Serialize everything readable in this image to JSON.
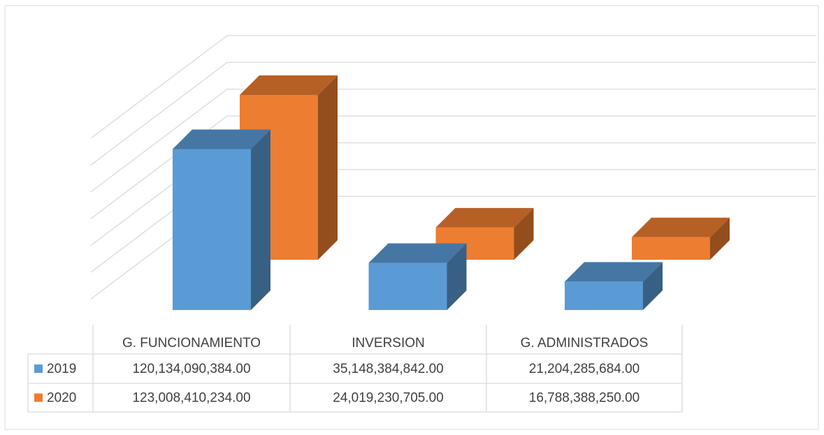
{
  "chart_data": {
    "type": "bar3d",
    "categories": [
      "G. FUNCIONAMIENTO",
      "INVERSION",
      "G. ADMINISTRADOS"
    ],
    "series": [
      {
        "name": "2019",
        "color": "#5b9bd5",
        "values": [
          120134090384.0,
          35148384842.0,
          21204285684.0
        ],
        "value_labels": [
          "120,134,090,384.00",
          "35,148,384,842.00",
          "21,204,285,684.00"
        ]
      },
      {
        "name": "2020",
        "color": "#ed7d31",
        "values": [
          123008410234.0,
          24019230705.0,
          16788388250.0
        ],
        "value_labels": [
          "123,008,410,234.00",
          "24,019,230,705.00",
          "16,788,388,250.00"
        ]
      }
    ],
    "ylim": [
      0,
      160000000000
    ],
    "yticks": [
      0,
      20000000000,
      40000000000,
      60000000000,
      80000000000,
      100000000000,
      120000000000,
      140000000000,
      160000000000
    ],
    "grid": true,
    "data_table": true
  }
}
